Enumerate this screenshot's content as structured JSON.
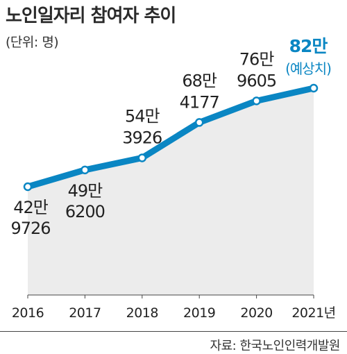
{
  "title": "노인일자리 참여자 추이",
  "unit_label": "(단위: 명)",
  "source": "자료: 한국노인인력개발원",
  "colors": {
    "line": "#0a86c3",
    "area": "#ececec",
    "highlight_label": "#0a86c3",
    "text": "#222222",
    "axis": "#444444"
  },
  "chart_data": {
    "type": "area",
    "title": "노인일자리 참여자 추이",
    "ylabel": "(단위: 명)",
    "xlabel": "",
    "categories": [
      "2016",
      "2017",
      "2018",
      "2019",
      "2020",
      "2021년"
    ],
    "series": [
      {
        "values": [
          429726,
          496200,
          543926,
          684177,
          769605,
          820000
        ],
        "labels": [
          [
            "42만",
            "9726"
          ],
          [
            "49만",
            "6200"
          ],
          [
            "54만",
            "3926"
          ],
          [
            "68만",
            "4177"
          ],
          [
            "76만",
            "9605"
          ],
          [
            "82만",
            "(예상치)"
          ]
        ],
        "label_positions": [
          "below",
          "below",
          "above",
          "above",
          "above",
          "above"
        ],
        "highlight_last": true
      }
    ],
    "ylim": [
      0,
      900000
    ],
    "grid": false
  }
}
